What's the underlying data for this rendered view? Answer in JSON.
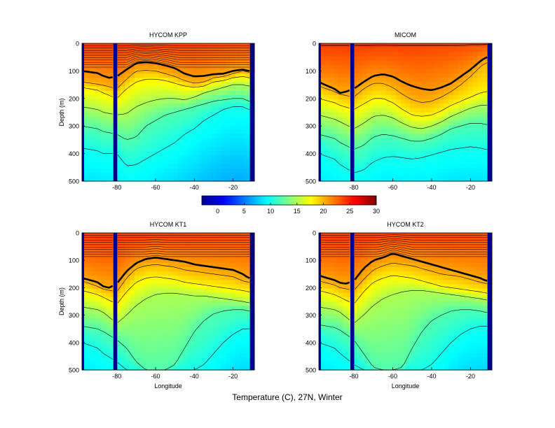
{
  "figure": {
    "title": "Temperature (C), 27N, Winter"
  },
  "colorbar": {
    "ticks": [
      "0",
      "5",
      "10",
      "15",
      "20",
      "25",
      "30"
    ],
    "range": [
      -3,
      30
    ]
  },
  "chart_data": [
    {
      "type": "heatmap",
      "title": "HYCOM KPP",
      "xlabel": "",
      "ylabel": "Depth (m)",
      "xlim": [
        -98,
        -9
      ],
      "ylim": [
        0,
        500
      ],
      "xticks": [
        -80,
        -60,
        -40,
        -20
      ],
      "xtick_labels": [
        "-80",
        "-60",
        "-40",
        "-20"
      ],
      "yticks": [
        0,
        100,
        200,
        300,
        400,
        500
      ],
      "mixed_layer_depth": {
        "x": [
          -98,
          -95,
          -90,
          -87,
          -84,
          -80,
          -75,
          -70,
          -65,
          -60,
          -55,
          -50,
          -45,
          -40,
          -35,
          -30,
          -25,
          -20,
          -15,
          -12
        ],
        "depth": [
          100,
          103,
          108,
          118,
          125,
          120,
          95,
          72,
          68,
          72,
          80,
          90,
          110,
          120,
          118,
          112,
          110,
          100,
          95,
          100
        ]
      },
      "isotherm_depths": {
        "x": [
          -98,
          -90,
          -87,
          -80,
          -75,
          -70,
          -65,
          -60,
          -55,
          -50,
          -45,
          -40,
          -35,
          -30,
          -25,
          -20,
          -15,
          -12
        ],
        "t20": [
          140,
          148,
          152,
          165,
          130,
          100,
          98,
          100,
          110,
          120,
          135,
          145,
          140,
          125,
          120,
          110,
          100,
          105
        ],
        "t18": [
          160,
          170,
          180,
          200,
          165,
          140,
          130,
          130,
          135,
          145,
          155,
          160,
          155,
          140,
          135,
          125,
          120,
          125
        ],
        "t15": [
          230,
          240,
          250,
          260,
          255,
          230,
          215,
          205,
          200,
          200,
          205,
          195,
          180,
          170,
          160,
          150,
          150,
          155
        ],
        "t12": [
          300,
          310,
          320,
          330,
          350,
          340,
          300,
          280,
          260,
          250,
          240,
          230,
          220,
          210,
          205,
          200,
          200,
          210
        ],
        "t10": [
          380,
          390,
          400,
          400,
          445,
          440,
          420,
          400,
          380,
          360,
          330,
          310,
          280,
          260,
          240,
          230,
          230,
          240
        ]
      }
    },
    {
      "type": "heatmap",
      "title": "MICOM",
      "xlabel": "",
      "ylabel": "",
      "xlim": [
        -98,
        -9
      ],
      "ylim": [
        0,
        500
      ],
      "xticks": [
        -80,
        -60,
        -40,
        -20
      ],
      "xtick_labels": [
        "-80",
        "-60",
        "-40",
        "-20"
      ],
      "yticks": [
        0,
        100,
        200,
        300,
        400,
        500
      ],
      "mixed_layer_depth": {
        "x": [
          -98,
          -95,
          -90,
          -87,
          -84,
          -80,
          -75,
          -70,
          -65,
          -60,
          -55,
          -50,
          -45,
          -40,
          -35,
          -30,
          -25,
          -20,
          -15,
          -12
        ],
        "depth": [
          140,
          150,
          165,
          180,
          175,
          165,
          140,
          118,
          112,
          120,
          140,
          155,
          165,
          170,
          160,
          145,
          120,
          95,
          65,
          50
        ]
      },
      "isotherm_depths": {
        "x": [
          -98,
          -90,
          -87,
          -80,
          -75,
          -70,
          -65,
          -60,
          -55,
          -50,
          -45,
          -40,
          -35,
          -30,
          -25,
          -20,
          -15,
          -12
        ],
        "t20": [
          155,
          175,
          185,
          195,
          165,
          145,
          145,
          160,
          185,
          205,
          215,
          210,
          195,
          175,
          150,
          120,
          85,
          70
        ],
        "t18": [
          200,
          215,
          225,
          240,
          220,
          200,
          200,
          215,
          240,
          260,
          265,
          260,
          245,
          225,
          210,
          195,
          180,
          175
        ],
        "t15": [
          260,
          275,
          285,
          310,
          290,
          265,
          260,
          270,
          290,
          305,
          310,
          300,
          285,
          265,
          250,
          235,
          225,
          225
        ],
        "t12": [
          330,
          345,
          360,
          385,
          370,
          340,
          330,
          335,
          345,
          355,
          355,
          345,
          330,
          310,
          300,
          290,
          290,
          295
        ],
        "t10": [
          400,
          420,
          440,
          470,
          460,
          430,
          415,
          410,
          415,
          420,
          415,
          405,
          395,
          385,
          380,
          375,
          380,
          385
        ]
      }
    },
    {
      "type": "heatmap",
      "title": "HYCOM KT1",
      "xlabel": "Longitude",
      "ylabel": "Depth (m)",
      "xlim": [
        -98,
        -9
      ],
      "ylim": [
        0,
        500
      ],
      "xticks": [
        -80,
        -60,
        -40,
        -20
      ],
      "xtick_labels": [
        "-80",
        "-60",
        "-40",
        "-20"
      ],
      "yticks": [
        0,
        100,
        200,
        300,
        400,
        500
      ],
      "mixed_layer_depth": {
        "x": [
          -98,
          -95,
          -90,
          -87,
          -84,
          -80,
          -75,
          -70,
          -65,
          -60,
          -55,
          -50,
          -45,
          -40,
          -35,
          -30,
          -25,
          -20,
          -15,
          -12
        ],
        "depth": [
          165,
          170,
          180,
          195,
          200,
          185,
          140,
          110,
          95,
          90,
          95,
          100,
          105,
          115,
          120,
          125,
          130,
          135,
          150,
          165
        ]
      },
      "isotherm_depths": {
        "x": [
          -98,
          -90,
          -87,
          -80,
          -75,
          -70,
          -65,
          -60,
          -55,
          -50,
          -45,
          -40,
          -35,
          -30,
          -25,
          -20,
          -15,
          -12
        ],
        "t20": [
          175,
          195,
          205,
          215,
          165,
          130,
          120,
          115,
          120,
          125,
          135,
          140,
          145,
          150,
          155,
          160,
          175,
          180
        ],
        "t18": [
          210,
          225,
          235,
          260,
          215,
          180,
          165,
          160,
          165,
          170,
          180,
          185,
          190,
          195,
          200,
          205,
          210,
          215
        ],
        "t15": [
          270,
          280,
          290,
          330,
          300,
          265,
          240,
          225,
          220,
          220,
          225,
          230,
          230,
          235,
          240,
          245,
          250,
          255
        ],
        "t12": [
          340,
          350,
          360,
          390,
          420,
          470,
          500,
          500,
          500,
          480,
          420,
          360,
          320,
          295,
          285,
          280,
          280,
          285
        ],
        "t10": [
          400,
          420,
          440,
          470,
          500,
          500,
          500,
          500,
          500,
          500,
          500,
          500,
          480,
          440,
          400,
          370,
          350,
          350
        ]
      }
    },
    {
      "type": "heatmap",
      "title": "HYCOM KT2",
      "xlabel": "Longitude",
      "ylabel": "",
      "xlim": [
        -98,
        -9
      ],
      "ylim": [
        0,
        500
      ],
      "xticks": [
        -80,
        -60,
        -40,
        -20
      ],
      "xtick_labels": [
        "-80",
        "-60",
        "-40",
        "-20"
      ],
      "yticks": [
        0,
        100,
        200,
        300,
        400,
        500
      ],
      "mixed_layer_depth": {
        "x": [
          -98,
          -95,
          -90,
          -87,
          -84,
          -80,
          -75,
          -70,
          -65,
          -60,
          -55,
          -50,
          -45,
          -40,
          -35,
          -30,
          -25,
          -20,
          -15,
          -12
        ],
        "depth": [
          155,
          162,
          172,
          182,
          185,
          175,
          130,
          100,
          90,
          75,
          85,
          95,
          105,
          115,
          125,
          135,
          145,
          155,
          165,
          175
        ]
      },
      "isotherm_depths": {
        "x": [
          -98,
          -90,
          -87,
          -80,
          -75,
          -70,
          -65,
          -60,
          -55,
          -50,
          -45,
          -40,
          -35,
          -30,
          -25,
          -20,
          -15,
          -12
        ],
        "t20": [
          175,
          190,
          200,
          210,
          170,
          135,
          120,
          110,
          115,
          120,
          130,
          140,
          150,
          155,
          160,
          170,
          180,
          185
        ],
        "t18": [
          210,
          225,
          235,
          260,
          215,
          180,
          165,
          155,
          160,
          165,
          175,
          185,
          195,
          200,
          205,
          210,
          215,
          220
        ],
        "t15": [
          270,
          280,
          290,
          330,
          300,
          265,
          240,
          225,
          215,
          210,
          210,
          215,
          220,
          225,
          230,
          235,
          240,
          245
        ],
        "t12": [
          335,
          345,
          355,
          390,
          440,
          490,
          500,
          500,
          490,
          420,
          360,
          320,
          300,
          285,
          280,
          280,
          285,
          290
        ],
        "t10": [
          400,
          420,
          440,
          480,
          500,
          500,
          500,
          500,
          500,
          500,
          500,
          480,
          440,
          400,
          370,
          350,
          340,
          340
        ]
      }
    }
  ]
}
